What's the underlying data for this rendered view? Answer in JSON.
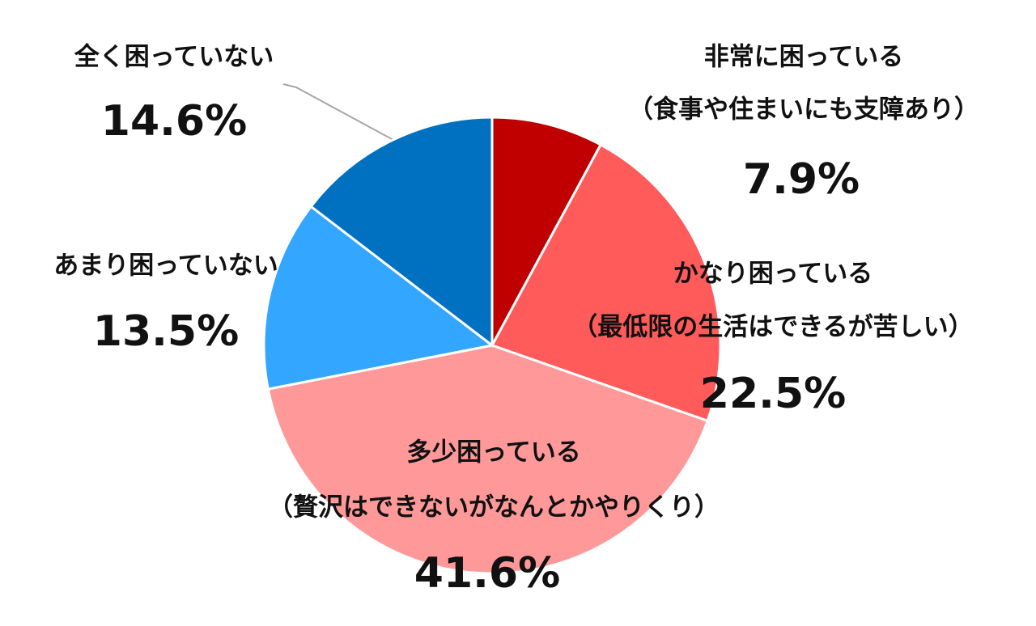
{
  "chart_data": {
    "type": "pie",
    "categories": [
      "非常に困っている",
      "かなり困っている",
      "多少困っている",
      "あまり困っていない",
      "全く困っていない"
    ],
    "category_notes": [
      "（食事や住まいにも支障あり）",
      "（最低限の生活はできるが苦しい）",
      "（贅沢はできないがなんとかやりくり）",
      null,
      null
    ],
    "values": [
      7.9,
      22.5,
      41.6,
      13.5,
      14.6
    ],
    "value_labels": [
      "7.9%",
      "22.5%",
      "41.6%",
      "13.5%",
      "14.6%"
    ],
    "colors": [
      "#c00000",
      "#ff5b5b",
      "#ff9999",
      "#33a6ff",
      "#0070c0"
    ]
  }
}
